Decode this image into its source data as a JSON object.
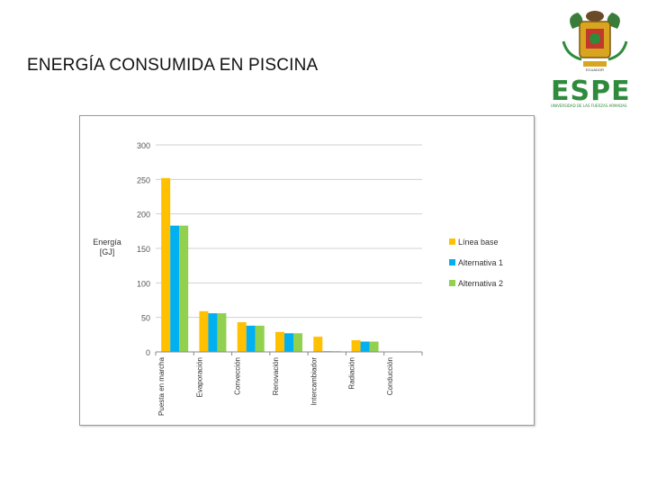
{
  "slide": {
    "title": "ENERGÍA CONSUMIDA EN PISCINA"
  },
  "logo": {
    "word": "ESPE",
    "subtitle": "UNIVERSIDAD DE LAS FUERZAS ARMADAS",
    "banner": "ECUADOR",
    "colors": {
      "green": "#2e8b3c",
      "gold": "#d9a520",
      "red": "#c0392b"
    }
  },
  "chart_data": {
    "type": "bar",
    "categories": [
      "Puesta en marcha",
      "Evaporación",
      "Convección",
      "Renovación",
      "Intercambiador",
      "Radiación",
      "Conducción"
    ],
    "series": [
      {
        "name": "Línea base",
        "color": "#ffc000",
        "values": [
          252,
          59,
          43,
          29,
          22,
          17,
          0
        ]
      },
      {
        "name": "Alternativa 1",
        "color": "#00b0f0",
        "values": [
          183,
          56,
          38,
          27,
          1,
          15,
          0
        ]
      },
      {
        "name": "Alternativa 2",
        "color": "#92d050",
        "values": [
          183,
          56,
          38,
          27,
          1,
          15,
          0
        ]
      }
    ],
    "ylabel": "Energía [GJ]",
    "ylim": [
      0,
      300
    ],
    "yticks": [
      0,
      50,
      100,
      150,
      200,
      250,
      300
    ],
    "grid": true,
    "legend": "right"
  }
}
